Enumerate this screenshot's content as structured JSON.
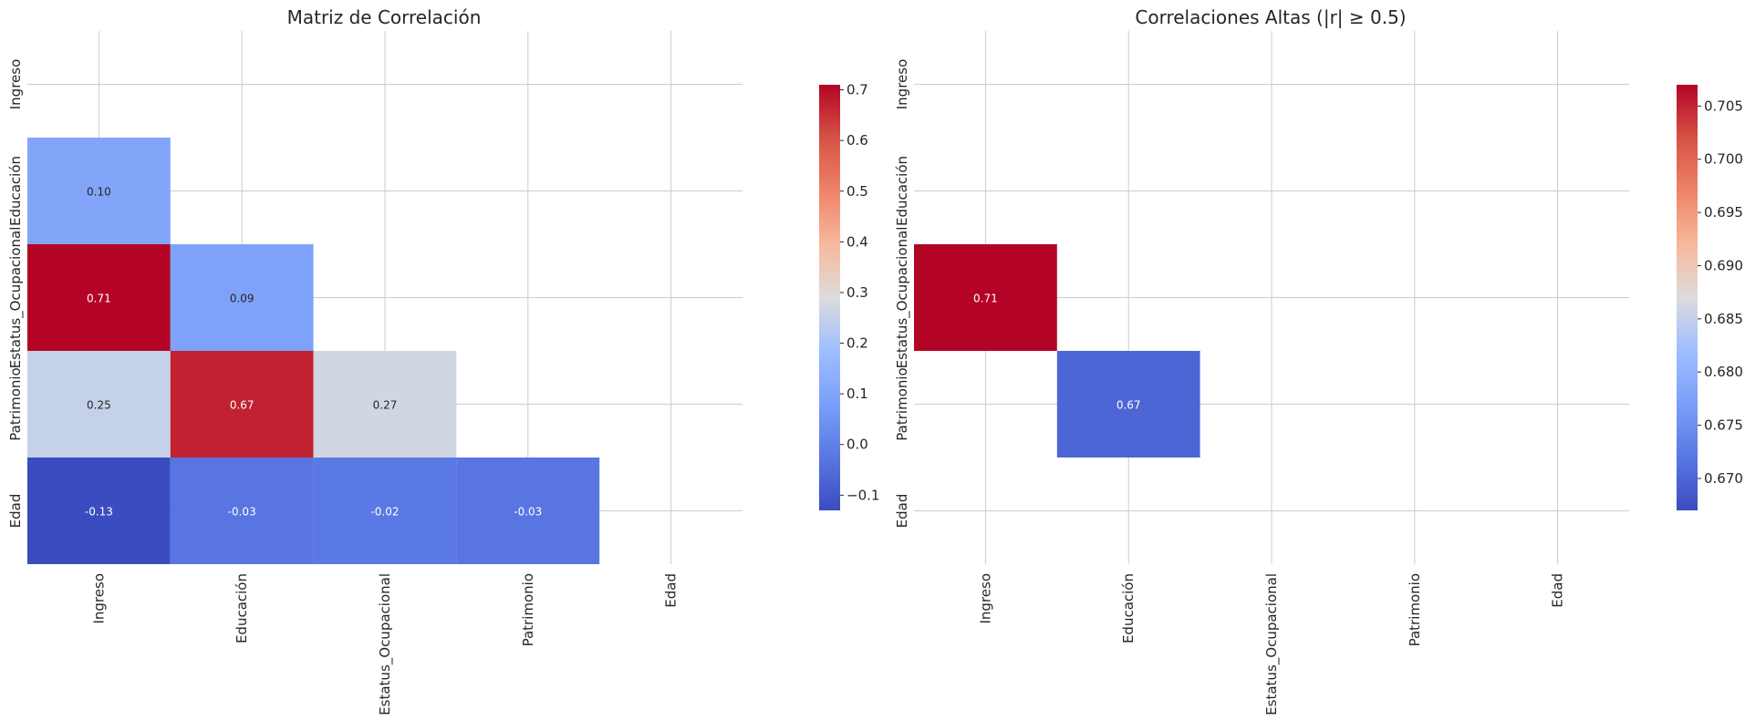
{
  "chart_data": [
    {
      "type": "heatmap",
      "title": "Matriz de Correlación",
      "variables": [
        "Ingreso",
        "Educación",
        "Estatus_Ocupacional",
        "Patrimonio",
        "Edad"
      ],
      "mask": "upper-triangle-incl-diagonal",
      "cells": [
        {
          "row": "Educación",
          "col": "Ingreso",
          "value": 0.1,
          "label": "0.10"
        },
        {
          "row": "Estatus_Ocupacional",
          "col": "Ingreso",
          "value": 0.71,
          "label": "0.71"
        },
        {
          "row": "Estatus_Ocupacional",
          "col": "Educación",
          "value": 0.09,
          "label": "0.09"
        },
        {
          "row": "Patrimonio",
          "col": "Ingreso",
          "value": 0.25,
          "label": "0.25"
        },
        {
          "row": "Patrimonio",
          "col": "Educación",
          "value": 0.67,
          "label": "0.67"
        },
        {
          "row": "Patrimonio",
          "col": "Estatus_Ocupacional",
          "value": 0.27,
          "label": "0.27"
        },
        {
          "row": "Edad",
          "col": "Ingreso",
          "value": -0.13,
          "label": "-0.13"
        },
        {
          "row": "Edad",
          "col": "Educación",
          "value": -0.03,
          "label": "-0.03"
        },
        {
          "row": "Edad",
          "col": "Estatus_Ocupacional",
          "value": -0.02,
          "label": "-0.02"
        },
        {
          "row": "Edad",
          "col": "Patrimonio",
          "value": -0.03,
          "label": "-0.03"
        }
      ],
      "colormap": "coolwarm",
      "vmin": -0.13,
      "vmax": 0.71,
      "colorbar_ticks": [
        "−0.1",
        "0.0",
        "0.1",
        "0.2",
        "0.3",
        "0.4",
        "0.5",
        "0.6",
        "0.7"
      ],
      "colorbar_tick_values": [
        -0.1,
        0.0,
        0.1,
        0.2,
        0.3,
        0.4,
        0.5,
        0.6,
        0.7
      ],
      "grid": true
    },
    {
      "type": "heatmap",
      "title": "Correlaciones Altas (|r| ≥ 0.5)",
      "variables": [
        "Ingreso",
        "Educación",
        "Estatus_Ocupacional",
        "Patrimonio",
        "Edad"
      ],
      "mask": "upper-triangle-incl-diagonal-and-abs-below-0.5",
      "cells": [
        {
          "row": "Estatus_Ocupacional",
          "col": "Ingreso",
          "value": 0.71,
          "label": "0.71"
        },
        {
          "row": "Patrimonio",
          "col": "Educación",
          "value": 0.67,
          "label": "0.67"
        }
      ],
      "colormap": "coolwarm",
      "vmin": 0.667,
      "vmax": 0.707,
      "colorbar_ticks": [
        "0.670",
        "0.675",
        "0.680",
        "0.685",
        "0.690",
        "0.695",
        "0.700",
        "0.705"
      ],
      "colorbar_tick_values": [
        0.67,
        0.675,
        0.68,
        0.685,
        0.69,
        0.695,
        0.7,
        0.705
      ],
      "grid": true
    }
  ]
}
